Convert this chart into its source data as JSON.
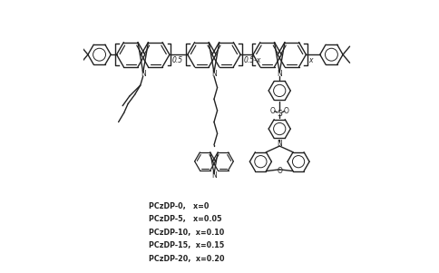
{
  "background_color": "#ffffff",
  "legend_lines": [
    "PCzDP-0,   x=0",
    "PCzDP-5,   x=0.05",
    "PCzDP-10,  x=0.10",
    "PCzDP-15,  x=0.15",
    "PCzDP-20,  x=0.20"
  ],
  "line_color": "#222222",
  "line_width": 1.0,
  "figsize": [
    4.84,
    3.01
  ],
  "dpi": 100
}
